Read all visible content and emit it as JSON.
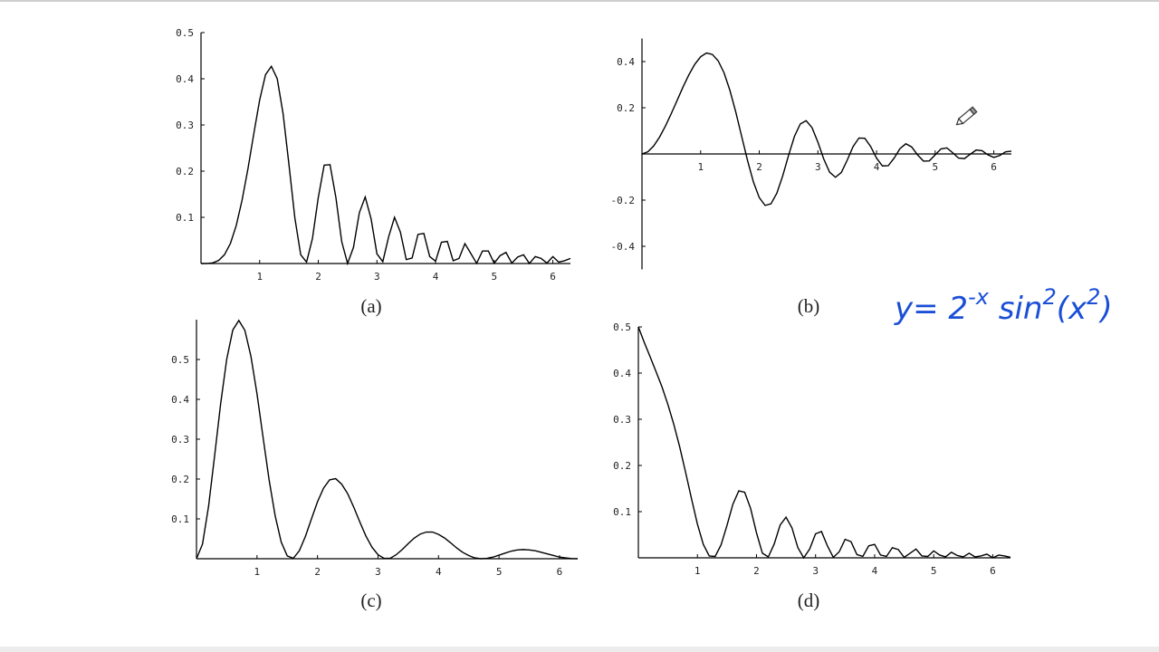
{
  "chart_data": [
    {
      "type": "line",
      "caption": "(a)",
      "color": "#000000",
      "x": [
        0,
        0.1,
        0.2,
        0.3,
        0.4,
        0.5,
        0.6,
        0.7,
        0.8,
        0.9,
        1,
        1.1,
        1.2,
        1.3,
        1.4,
        1.5,
        1.6,
        1.7,
        1.8,
        1.9,
        2,
        2.1,
        2.2,
        2.3,
        2.4,
        2.5,
        2.6,
        2.7,
        2.8,
        2.9,
        3,
        3.1,
        3.2,
        3.3,
        3.4,
        3.5,
        3.6,
        3.7,
        3.8,
        3.9,
        4,
        4.1,
        4.2,
        4.3,
        4.4,
        4.5,
        4.6,
        4.7,
        4.8,
        4.9,
        5,
        5.1,
        5.2,
        5.3,
        5.4,
        5.5,
        5.6,
        5.7,
        5.8,
        5.9,
        6,
        6.1,
        6.2,
        6.3
      ],
      "values": [
        0,
        0.0001,
        0.0014,
        0.0066,
        0.019,
        0.043,
        0.082,
        0.137,
        0.205,
        0.281,
        0.354,
        0.409,
        0.427,
        0.4,
        0.324,
        0.214,
        0.099,
        0.019,
        0.003,
        0.054,
        0.143,
        0.213,
        0.214,
        0.143,
        0.047,
        0.0002,
        0.035,
        0.11,
        0.144,
        0.097,
        0.021,
        0.004,
        0.058,
        0.1,
        0.068,
        0.0085,
        0.012,
        0.063,
        0.065,
        0.015,
        0.005,
        0.046,
        0.048,
        0.006,
        0.011,
        0.043,
        0.022,
        0.0004,
        0.027,
        0.027,
        0.0006,
        0.017,
        0.024,
        0.001,
        0.014,
        0.019,
        0.0001,
        0.015,
        0.011,
        0.001,
        0.015,
        0.003,
        0.006,
        0.011
      ],
      "xlim": [
        0,
        6.3
      ],
      "ylim": [
        0,
        0.5
      ],
      "xticks": [
        1,
        2,
        3,
        4,
        5,
        6
      ],
      "yticks": [
        0.1,
        0.2,
        0.3,
        0.4,
        0.5
      ]
    },
    {
      "type": "line",
      "caption": "(b)",
      "color": "#000000",
      "x": [
        0,
        0.1,
        0.2,
        0.3,
        0.4,
        0.5,
        0.6,
        0.7,
        0.8,
        0.9,
        1,
        1.1,
        1.2,
        1.3,
        1.4,
        1.5,
        1.6,
        1.7,
        1.8,
        1.9,
        2,
        2.1,
        2.2,
        2.3,
        2.4,
        2.5,
        2.6,
        2.7,
        2.8,
        2.9,
        3,
        3.1,
        3.2,
        3.3,
        3.4,
        3.5,
        3.6,
        3.7,
        3.8,
        3.9,
        4,
        4.1,
        4.2,
        4.3,
        4.4,
        4.5,
        4.6,
        4.7,
        4.8,
        4.9,
        5,
        5.1,
        5.2,
        5.3,
        5.4,
        5.5,
        5.6,
        5.7,
        5.8,
        5.9,
        6,
        6.1,
        6.2,
        6.3
      ],
      "values": [
        0,
        0.0093,
        0.0348,
        0.0731,
        0.121,
        0.175,
        0.232,
        0.29,
        0.343,
        0.388,
        0.421,
        0.437,
        0.431,
        0.403,
        0.351,
        0.275,
        0.181,
        0.076,
        -0.028,
        -0.121,
        -0.189,
        -0.223,
        -0.216,
        -0.17,
        -0.095,
        -0.006,
        0.076,
        0.13,
        0.144,
        0.114,
        0.051,
        -0.022,
        -0.079,
        -0.101,
        -0.08,
        -0.027,
        0.032,
        0.069,
        0.068,
        0.032,
        -0.018,
        -0.052,
        -0.051,
        -0.018,
        0.023,
        0.044,
        0.03,
        -0.004,
        -0.031,
        -0.03,
        -0.004,
        0.022,
        0.026,
        0.005,
        -0.018,
        -0.02,
        -0.001,
        0.017,
        0.014,
        -0.004,
        -0.015,
        -0.007,
        0.009,
        0.012
      ],
      "xlim": [
        0,
        6.3
      ],
      "ylim": [
        -0.5,
        0.5
      ],
      "xticks": [
        1,
        2,
        3,
        4,
        5,
        6
      ],
      "yticks": [
        -0.4,
        -0.2,
        0.2,
        0.4
      ]
    },
    {
      "type": "line",
      "caption": "(c)",
      "color": "#000000",
      "x": [
        0,
        0.1,
        0.2,
        0.3,
        0.4,
        0.5,
        0.6,
        0.7,
        0.8,
        0.9,
        1,
        1.1,
        1.2,
        1.3,
        1.4,
        1.5,
        1.6,
        1.7,
        1.8,
        1.9,
        2,
        2.1,
        2.2,
        2.3,
        2.4,
        2.5,
        2.6,
        2.7,
        2.8,
        2.9,
        3,
        3.1,
        3.2,
        3.3,
        3.4,
        3.5,
        3.6,
        3.7,
        3.8,
        3.9,
        4,
        4.1,
        4.2,
        4.3,
        4.4,
        4.5,
        4.6,
        4.7,
        4.8,
        4.9,
        5,
        5.1,
        5.2,
        5.3,
        5.4,
        5.5,
        5.6,
        5.7,
        5.8,
        5.9,
        6,
        6.1,
        6.2,
        6.3
      ],
      "values": [
        0,
        0.037,
        0.132,
        0.259,
        0.39,
        0.501,
        0.574,
        0.598,
        0.573,
        0.508,
        0.414,
        0.305,
        0.198,
        0.108,
        0.042,
        0.007,
        0.001,
        0.02,
        0.056,
        0.1,
        0.143,
        0.177,
        0.198,
        0.201,
        0.187,
        0.163,
        0.129,
        0.092,
        0.057,
        0.029,
        0.01,
        0.001,
        0.001,
        0.01,
        0.023,
        0.038,
        0.052,
        0.062,
        0.067,
        0.067,
        0.061,
        0.052,
        0.04,
        0.027,
        0.016,
        0.008,
        0.002,
        0,
        0.001,
        0.004,
        0.009,
        0.014,
        0.019,
        0.022,
        0.023,
        0.022,
        0.02,
        0.016,
        0.012,
        0.008,
        0.004,
        0.002,
        0.0003,
        0
      ],
      "xlim": [
        0,
        6.3
      ],
      "ylim": [
        0,
        0.6
      ],
      "xticks": [
        1,
        2,
        3,
        4,
        5,
        6
      ],
      "yticks": [
        0.1,
        0.2,
        0.3,
        0.4,
        0.5
      ]
    },
    {
      "type": "line",
      "caption": "(d)",
      "color": "#000000",
      "x": [
        0,
        0.1,
        0.2,
        0.3,
        0.4,
        0.5,
        0.6,
        0.7,
        0.8,
        0.9,
        1,
        1.1,
        1.2,
        1.3,
        1.4,
        1.5,
        1.6,
        1.7,
        1.8,
        1.9,
        2,
        2.1,
        2.2,
        2.3,
        2.4,
        2.5,
        2.6,
        2.7,
        2.8,
        2.9,
        3,
        3.1,
        3.2,
        3.3,
        3.4,
        3.5,
        3.6,
        3.7,
        3.8,
        3.9,
        4,
        4.1,
        4.2,
        4.3,
        4.4,
        4.5,
        4.6,
        4.7,
        4.8,
        4.9,
        5,
        5.1,
        5.2,
        5.3,
        5.4,
        5.5,
        5.6,
        5.7,
        5.8,
        5.9,
        6,
        6.1,
        6.2,
        6.3
      ],
      "values": [
        0.5,
        0.4665,
        0.435,
        0.403,
        0.37,
        0.332,
        0.289,
        0.24,
        0.185,
        0.128,
        0.073,
        0.029,
        0.004,
        0.003,
        0.028,
        0.07,
        0.116,
        0.145,
        0.142,
        0.107,
        0.054,
        0.01,
        0.002,
        0.03,
        0.071,
        0.088,
        0.065,
        0.022,
        0,
        0.019,
        0.052,
        0.057,
        0.026,
        0.001,
        0.013,
        0.04,
        0.035,
        0.007,
        0.003,
        0.026,
        0.029,
        0.006,
        0.003,
        0.022,
        0.018,
        0.001,
        0.01,
        0.019,
        0.004,
        0.003,
        0.015,
        0.006,
        0.002,
        0.012,
        0.005,
        0.002,
        0.01,
        0.002,
        0.004,
        0.008,
        0,
        0.006,
        0.004,
        0.001
      ],
      "xlim": [
        0,
        6.3
      ],
      "ylim": [
        0,
        0.5
      ],
      "xticks": [
        1,
        2,
        3,
        4,
        5,
        6
      ],
      "yticks": [
        0.1,
        0.2,
        0.3,
        0.4,
        0.5
      ]
    }
  ],
  "formula": [
    {
      "text": "y= 2",
      "sup": false
    },
    {
      "text": "-x",
      "sup": true
    },
    {
      "text": " sin",
      "sup": false
    },
    {
      "text": "2",
      "sup": true
    },
    {
      "text": "(x",
      "sup": false
    },
    {
      "text": "2",
      "sup": true
    },
    {
      "text": ")",
      "sup": false
    }
  ]
}
